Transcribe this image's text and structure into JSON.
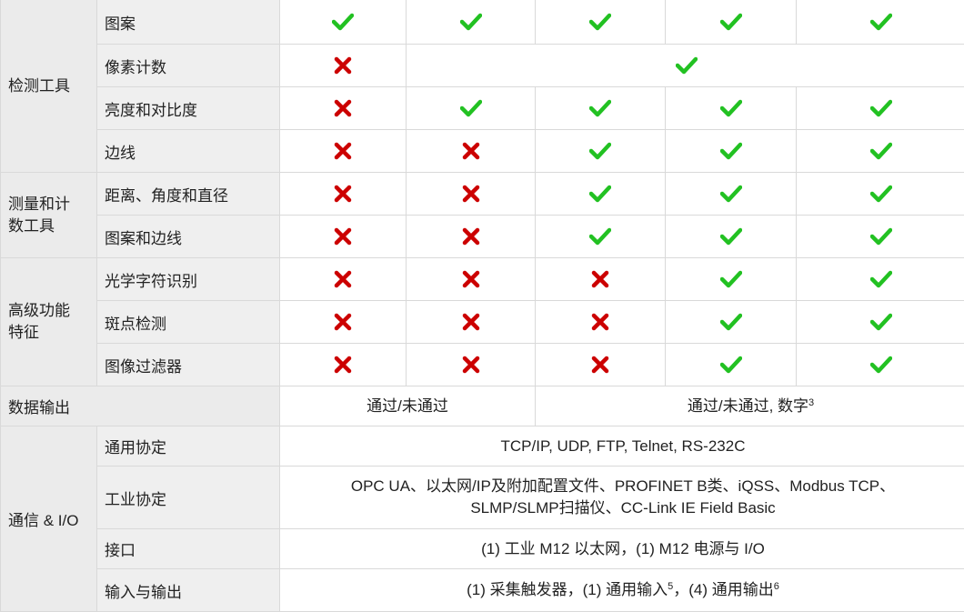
{
  "colors": {
    "check": "#22c122",
    "cross": "#cc0000"
  },
  "groups": [
    {
      "label": "检测工具",
      "rows": [
        {
          "label": "图案",
          "cells": [
            {
              "icon": "check"
            },
            {
              "icon": "check"
            },
            {
              "icon": "check"
            },
            {
              "icon": "check"
            },
            {
              "icon": "check"
            }
          ]
        },
        {
          "label": "像素计数",
          "cells": [
            {
              "icon": "cross"
            },
            {
              "icon": "check",
              "span": 4
            }
          ]
        },
        {
          "label": "亮度和对比度",
          "cells": [
            {
              "icon": "cross"
            },
            {
              "icon": "check"
            },
            {
              "icon": "check"
            },
            {
              "icon": "check"
            },
            {
              "icon": "check"
            }
          ]
        },
        {
          "label": "边线",
          "cells": [
            {
              "icon": "cross"
            },
            {
              "icon": "cross"
            },
            {
              "icon": "check"
            },
            {
              "icon": "check"
            },
            {
              "icon": "check"
            }
          ]
        }
      ]
    },
    {
      "label": "测量和计数工具",
      "rows": [
        {
          "label": "距离、角度和直径",
          "cells": [
            {
              "icon": "cross"
            },
            {
              "icon": "cross"
            },
            {
              "icon": "check"
            },
            {
              "icon": "check"
            },
            {
              "icon": "check"
            }
          ]
        },
        {
          "label": "图案和边线",
          "cells": [
            {
              "icon": "cross"
            },
            {
              "icon": "cross"
            },
            {
              "icon": "check"
            },
            {
              "icon": "check"
            },
            {
              "icon": "check"
            }
          ]
        }
      ]
    },
    {
      "label": "高级功能特征",
      "rows": [
        {
          "label": "光学字符识别",
          "cells": [
            {
              "icon": "cross"
            },
            {
              "icon": "cross"
            },
            {
              "icon": "cross"
            },
            {
              "icon": "check"
            },
            {
              "icon": "check"
            }
          ]
        },
        {
          "label": "斑点检测",
          "cells": [
            {
              "icon": "cross"
            },
            {
              "icon": "cross"
            },
            {
              "icon": "cross"
            },
            {
              "icon": "check"
            },
            {
              "icon": "check"
            }
          ]
        },
        {
          "label": "图像过滤器",
          "cells": [
            {
              "icon": "cross"
            },
            {
              "icon": "cross"
            },
            {
              "icon": "cross"
            },
            {
              "icon": "check"
            },
            {
              "icon": "check"
            }
          ]
        }
      ]
    }
  ],
  "data_output": {
    "label": "数据输出",
    "cells": [
      {
        "text": "通过/未通过",
        "span": 2
      },
      {
        "text": "通过/未通过, 数字",
        "sup": "3",
        "span": 3
      }
    ]
  },
  "comms": {
    "label": "通信 & I/O",
    "rows": [
      {
        "label": "通用协定",
        "text": "TCP/IP, UDP, FTP, Telnet, RS-232C"
      },
      {
        "label": "工业协定",
        "text": "OPC UA、以太网/IP及附加配置文件、PROFINET B类、iQSS、Modbus TCP、SLMP/SLMP扫描仪、CC-Link IE Field Basic"
      },
      {
        "label": "接口",
        "text": "(1) 工业 M12 以太网，(1) M12 电源与 I/O"
      },
      {
        "label": "输入与输出",
        "parts": [
          {
            "text": "(1) 采集触发器，(1) 通用输入"
          },
          {
            "sup": "5"
          },
          {
            "text": "，(4) 通用输出"
          },
          {
            "sup": "6"
          }
        ]
      }
    ]
  }
}
